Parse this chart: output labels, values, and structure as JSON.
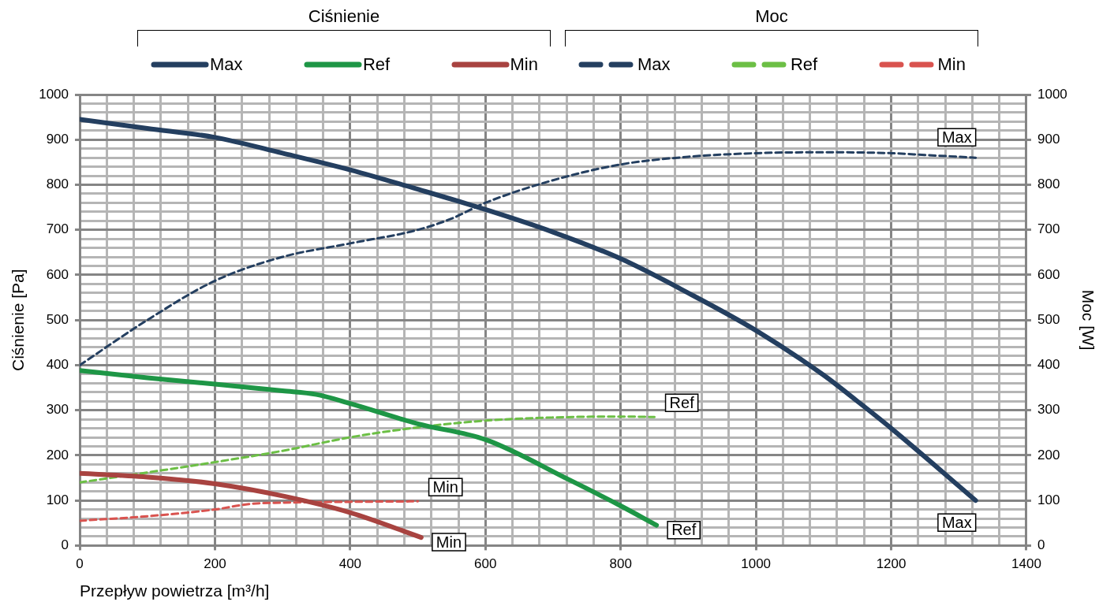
{
  "chart_data": {
    "type": "line",
    "xlabel": "Przepływ powietrza [m³/h]",
    "ylabel": "Ciśnienie [Pa]",
    "y2label": "Moc [W]",
    "xlim": [
      0,
      1400
    ],
    "xticks": [
      0,
      {
        "value": 40,
        "label": null
      },
      {
        "value": 80,
        "label": null
      },
      {
        "value": 120,
        "label": null
      },
      {
        "value": 160,
        "label": null
      },
      200,
      {
        "value": 240,
        "label": null
      },
      {
        "value": 280,
        "label": null
      },
      {
        "value": 320,
        "label": null
      },
      {
        "value": 360,
        "label": null
      },
      400,
      {
        "value": 440,
        "label": null
      },
      {
        "value": 480,
        "label": null
      },
      {
        "value": 520,
        "label": null
      },
      {
        "value": 560,
        "label": null
      },
      600,
      {
        "value": 640,
        "label": null
      },
      {
        "value": 680,
        "label": null
      },
      {
        "value": 720,
        "label": null
      },
      {
        "value": 760,
        "label": null
      },
      800,
      {
        "value": 840,
        "label": null
      },
      {
        "value": 880,
        "label": null
      },
      {
        "value": 920,
        "label": null
      },
      {
        "value": 960,
        "label": null
      },
      1000,
      {
        "value": 1040,
        "label": null
      },
      {
        "value": 1080,
        "label": null
      },
      {
        "value": 1120,
        "label": null
      },
      {
        "value": 1160,
        "label": null
      },
      1200,
      {
        "value": 1240,
        "label": null
      },
      {
        "value": 1280,
        "label": null
      },
      {
        "value": 1320,
        "label": null
      },
      {
        "value": 1360,
        "label": null
      },
      1400
    ],
    "ylim": [
      0,
      1000
    ],
    "yticks": [
      0,
      {
        "value": 20,
        "label": null
      },
      {
        "value": 40,
        "label": null
      },
      {
        "value": 60,
        "label": null
      },
      {
        "value": 80,
        "label": null
      },
      100,
      {
        "value": 120,
        "label": null
      },
      {
        "value": 140,
        "label": null
      },
      {
        "value": 160,
        "label": null
      },
      {
        "value": 180,
        "label": null
      },
      200,
      {
        "value": 220,
        "label": null
      },
      {
        "value": 240,
        "label": null
      },
      {
        "value": 260,
        "label": null
      },
      {
        "value": 280,
        "label": null
      },
      300,
      {
        "value": 320,
        "label": null
      },
      {
        "value": 340,
        "label": null
      },
      {
        "value": 360,
        "label": null
      },
      {
        "value": 380,
        "label": null
      },
      400,
      {
        "value": 420,
        "label": null
      },
      {
        "value": 440,
        "label": null
      },
      {
        "value": 460,
        "label": null
      },
      {
        "value": 480,
        "label": null
      },
      500,
      {
        "value": 520,
        "label": null
      },
      {
        "value": 540,
        "label": null
      },
      {
        "value": 560,
        "label": null
      },
      {
        "value": 580,
        "label": null
      },
      600,
      {
        "value": 620,
        "label": null
      },
      {
        "value": 640,
        "label": null
      },
      {
        "value": 660,
        "label": null
      },
      {
        "value": 680,
        "label": null
      },
      700,
      {
        "value": 720,
        "label": null
      },
      {
        "value": 740,
        "label": null
      },
      {
        "value": 760,
        "label": null
      },
      {
        "value": 780,
        "label": null
      },
      800,
      {
        "value": 820,
        "label": null
      },
      {
        "value": 840,
        "label": null
      },
      {
        "value": 860,
        "label": null
      },
      {
        "value": 880,
        "label": null
      },
      900,
      {
        "value": 920,
        "label": null
      },
      {
        "value": 940,
        "label": null
      },
      {
        "value": 960,
        "label": null
      },
      {
        "value": 980,
        "label": null
      },
      1000
    ],
    "y2lim": [
      0,
      1000
    ],
    "y2ticks": [
      0,
      100,
      200,
      300,
      400,
      500,
      600,
      700,
      800,
      900,
      1000
    ],
    "grid": true,
    "legend": "top",
    "series": [
      {
        "name": "Max",
        "color": "#243f60",
        "line_style": "solid",
        "x": [
          0,
          100,
          200,
          300,
          400,
          500,
          600,
          700,
          800,
          900,
          1000,
          1100,
          1150,
          1200,
          1325
        ],
        "values": [
          945,
          925,
          905,
          870,
          833,
          790,
          745,
          695,
          636,
          560,
          477,
          378,
          320,
          260,
          100
        ]
      },
      {
        "name": "Ref",
        "color": "#1e9646",
        "line_style": "solid",
        "x": [
          0,
          100,
          200,
          300,
          350,
          400,
          500,
          600,
          725,
          800,
          853
        ],
        "values": [
          388,
          372,
          358,
          343,
          335,
          315,
          270,
          235,
          145,
          88,
          45
        ]
      },
      {
        "name": "Min",
        "color": "#a84340",
        "line_style": "solid",
        "x": [
          0,
          100,
          200,
          300,
          400,
          505
        ],
        "values": [
          160,
          152,
          137,
          110,
          73,
          18
        ]
      },
      {
        "name": "Max",
        "color": "#243f60",
        "line_style": "dashed",
        "axis": "y2",
        "x": [
          0,
          100,
          200,
          300,
          400,
          500,
          550,
          600,
          700,
          800,
          900,
          1000,
          1100,
          1200,
          1250,
          1325
        ],
        "values": [
          400,
          500,
          587,
          640,
          670,
          700,
          725,
          760,
          810,
          845,
          862,
          870,
          872,
          870,
          866,
          860
        ]
      },
      {
        "name": "Ref",
        "color": "#6cbf45",
        "line_style": "dashed",
        "axis": "y2",
        "x": [
          0,
          100,
          200,
          300,
          400,
          500,
          600,
          700,
          800,
          850
        ],
        "values": [
          140,
          162,
          185,
          210,
          240,
          262,
          277,
          284,
          286,
          285
        ]
      },
      {
        "name": "Min",
        "color": "#d9534f",
        "line_style": "dashed",
        "axis": "y2",
        "x": [
          0,
          100,
          200,
          250,
          300,
          400,
          500
        ],
        "values": [
          55,
          65,
          80,
          92,
          95,
          97,
          98
        ]
      }
    ],
    "annotations": [
      "Ciśnienie",
      "Moc",
      {
        "text": "Max",
        "x": 1325,
        "y": 860
      },
      {
        "text": "Max",
        "x": 1325,
        "y": 100
      },
      {
        "text": "Ref",
        "x": 850,
        "y": 285
      },
      {
        "text": "Ref",
        "x": 853,
        "y": 45
      },
      {
        "text": "Min",
        "x": 500,
        "y": 98
      },
      {
        "text": "Min",
        "x": 505,
        "y": 18
      }
    ]
  }
}
